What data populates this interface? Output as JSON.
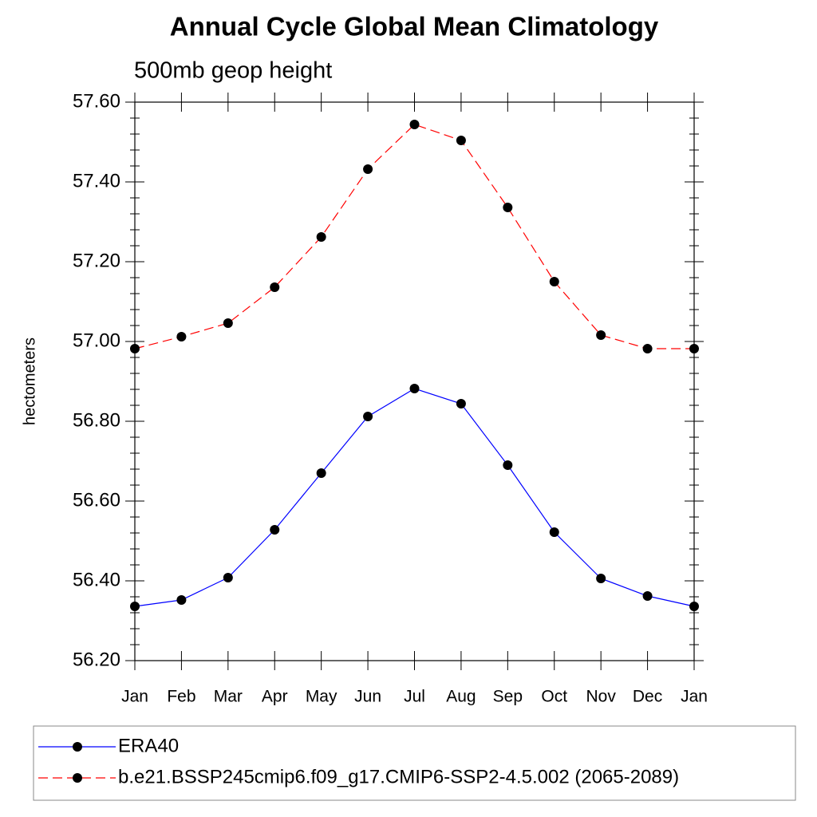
{
  "chart_data": {
    "type": "line",
    "title": "Annual Cycle Global Mean Climatology",
    "subtitle": "500mb geop height",
    "y_label": "hectometers",
    "categories": [
      "Jan",
      "Feb",
      "Mar",
      "Apr",
      "May",
      "Jun",
      "Jul",
      "Aug",
      "Sep",
      "Oct",
      "Nov",
      "Dec",
      "Jan"
    ],
    "series": [
      {
        "name": "ERA40",
        "color": "#0000ff",
        "dash": "none",
        "values": [
          56.336,
          56.352,
          56.408,
          56.528,
          56.67,
          56.812,
          56.882,
          56.844,
          56.69,
          56.522,
          56.406,
          56.362,
          56.336
        ]
      },
      {
        "name": "b.e21.BSSP245cmip6.f09_g17.CMIP6-SSP2-4.5.002 (2065-2089)",
        "color": "#ff0000",
        "dash": "12 6",
        "values": [
          56.982,
          57.012,
          57.046,
          57.136,
          57.262,
          57.432,
          57.544,
          57.504,
          57.336,
          57.15,
          57.016,
          56.982,
          56.982
        ]
      }
    ],
    "ylim": [
      56.2,
      57.6
    ],
    "yticks": [
      {
        "value": 56.2,
        "label": "56.20"
      },
      {
        "value": 56.4,
        "label": "56.40"
      },
      {
        "value": 56.6,
        "label": "56.60"
      },
      {
        "value": 56.8,
        "label": "56.80"
      },
      {
        "value": 57.0,
        "label": "57.00"
      },
      {
        "value": 57.2,
        "label": "57.20"
      },
      {
        "value": 57.4,
        "label": "57.40"
      },
      {
        "value": 57.6,
        "label": "57.60"
      }
    ],
    "y_minor_ticks": [
      56.24,
      56.28,
      56.32,
      56.36,
      56.44,
      56.48,
      56.52,
      56.56,
      56.64,
      56.68,
      56.72,
      56.76,
      56.84,
      56.88,
      56.92,
      56.96,
      57.04,
      57.08,
      57.12,
      57.16,
      57.24,
      57.28,
      57.32,
      57.36,
      57.44,
      57.48,
      57.52,
      57.56
    ],
    "grid": false,
    "legend": "bottom"
  }
}
